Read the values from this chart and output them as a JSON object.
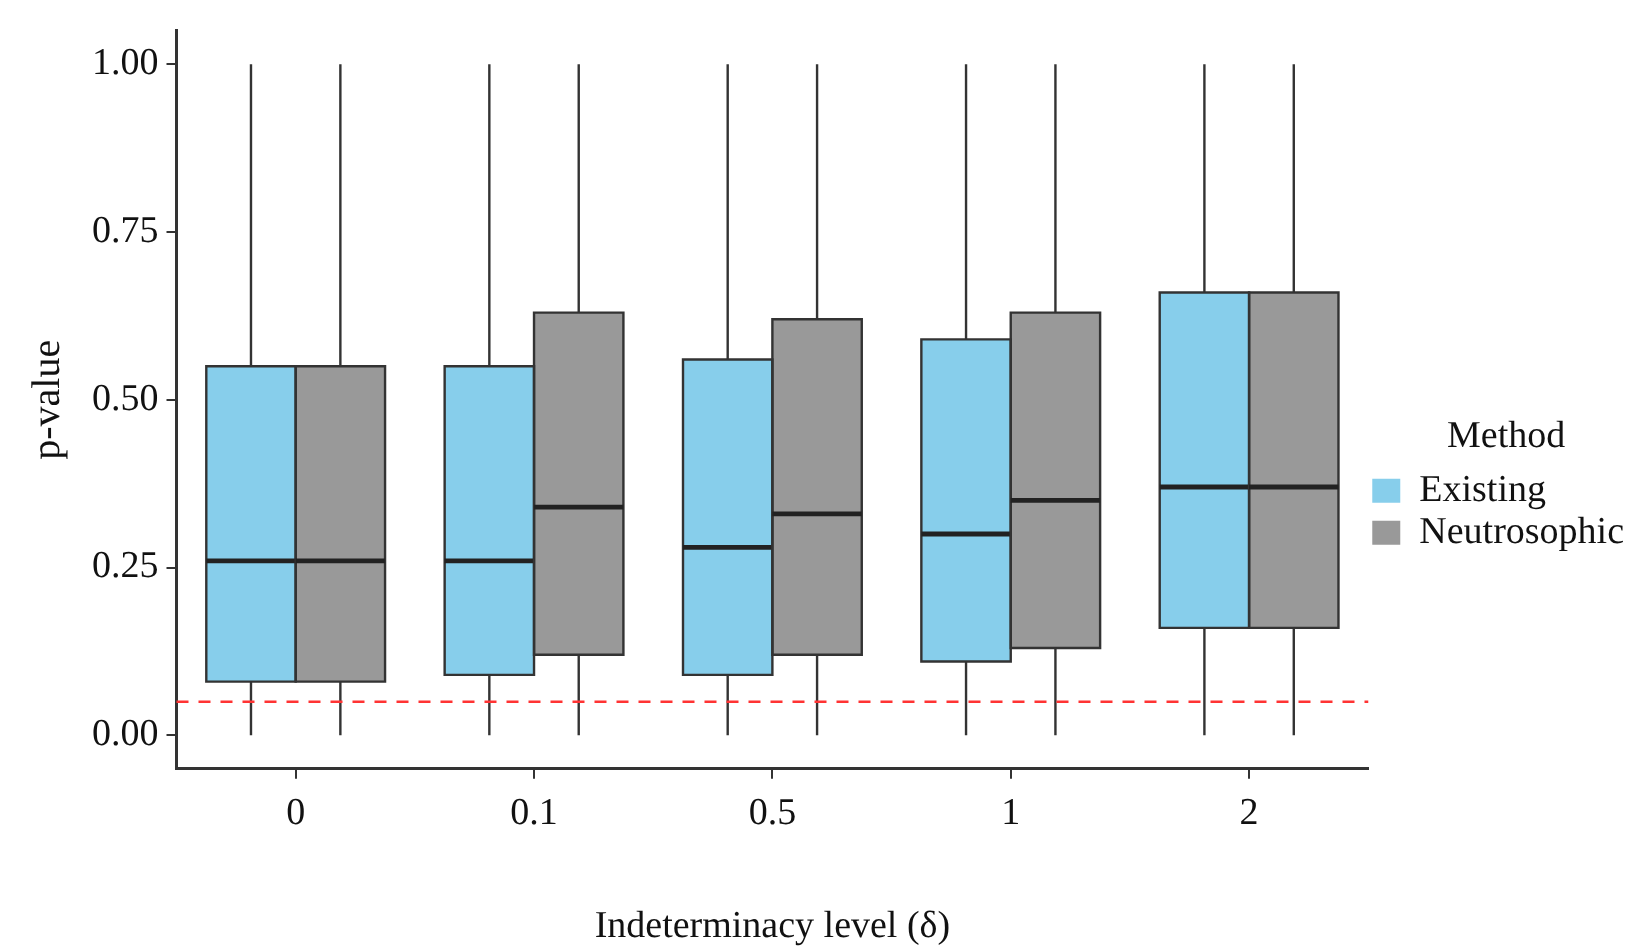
{
  "chart_data": {
    "type": "box",
    "xlabel": "Indeterminacy level (δ)",
    "ylabel": "p-value",
    "legend_title": "Method",
    "categories": [
      "0",
      "0.1",
      "0.5",
      "1",
      "2"
    ],
    "series": [
      {
        "name": "Existing",
        "color": "#87ceeb",
        "boxes": [
          {
            "low": 0,
            "q1": 0.08,
            "median": 0.26,
            "q3": 0.55,
            "high": 1
          },
          {
            "low": 0,
            "q1": 0.09,
            "median": 0.26,
            "q3": 0.55,
            "high": 1
          },
          {
            "low": 0,
            "q1": 0.09,
            "median": 0.28,
            "q3": 0.56,
            "high": 1
          },
          {
            "low": 0,
            "q1": 0.11,
            "median": 0.3,
            "q3": 0.59,
            "high": 1
          },
          {
            "low": 0,
            "q1": 0.16,
            "median": 0.37,
            "q3": 0.66,
            "high": 1
          }
        ]
      },
      {
        "name": "Neutrosophic",
        "color": "#999999",
        "boxes": [
          {
            "low": 0,
            "q1": 0.08,
            "median": 0.26,
            "q3": 0.55,
            "high": 1
          },
          {
            "low": 0,
            "q1": 0.12,
            "median": 0.34,
            "q3": 0.63,
            "high": 1
          },
          {
            "low": 0,
            "q1": 0.12,
            "median": 0.33,
            "q3": 0.62,
            "high": 1
          },
          {
            "low": 0,
            "q1": 0.13,
            "median": 0.35,
            "q3": 0.63,
            "high": 1
          },
          {
            "low": 0,
            "q1": 0.16,
            "median": 0.37,
            "q3": 0.66,
            "high": 1
          }
        ]
      }
    ],
    "ylim": [
      -0.05,
      1.05
    ],
    "yticks": [
      {
        "value": 0,
        "label": "0.00"
      },
      {
        "value": 0.25,
        "label": "0.25"
      },
      {
        "value": 0.5,
        "label": "0.50"
      },
      {
        "value": 0.75,
        "label": "0.75"
      },
      {
        "value": 1,
        "label": "1.00"
      }
    ],
    "ref_lines": [
      {
        "axis": "y",
        "value": 0.05,
        "color": "#ff3333",
        "line_style": "dashed"
      }
    ],
    "grid": false,
    "legend": "right"
  }
}
